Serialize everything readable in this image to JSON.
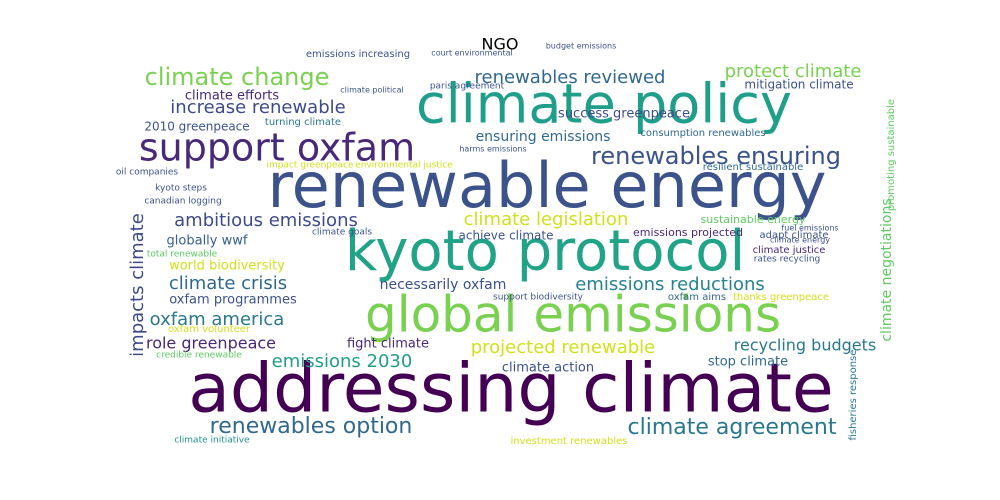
{
  "chart_data": {
    "type": "wordcloud",
    "title": "NGO",
    "words": [
      "addressing climate",
      "renewable energy",
      "climate policy",
      "kyoto protocol",
      "global emissions",
      "support oxfam",
      "climate change",
      "renewables reviewed",
      "protect climate",
      "renewables ensuring",
      "increase renewable",
      "climate efforts",
      "2010 greenpeace",
      "success greenpeace",
      "ensuring emissions",
      "climate legislation",
      "ambitious emissions",
      "globally wwf",
      "world biodiversity",
      "climate crisis",
      "oxfam programmes",
      "oxfam america",
      "role greenpeace",
      "emissions 2030",
      "renewables option",
      "climate agreement",
      "projected renewable",
      "fight climate",
      "climate action",
      "stop climate",
      "recycling budgets",
      "emissions reductions",
      "necessarily oxfam",
      "achieve climate",
      "sustainable energy",
      "emissions projected",
      "impacts climate",
      "climate negotiations",
      "promoting sustainable",
      "mitigation climate",
      "consumption renewables",
      "emissions increasing",
      "climate political",
      "paris agreement",
      "kyoto steps",
      "canadian logging",
      "oil companies",
      "impact greenpeace",
      "environmental justice",
      "resilient sustainable",
      "adapt climate",
      "climate justice",
      "rates recycling",
      "oxfam aims",
      "thanks greenpeace",
      "total renewable",
      "climate goals",
      "turning climate",
      "harms emissions",
      "support biodiversity",
      "credible renewable",
      "oxfam volunteer",
      "climate initiative",
      "investment renewables",
      "fuel emissions",
      "climate energy",
      "fisheries response",
      "budget emissions",
      "court environmental"
    ],
    "values": [
      68,
      62,
      54,
      56,
      50,
      38,
      24,
      18,
      18,
      24,
      18,
      13,
      12,
      13,
      14,
      18,
      18,
      13,
      13,
      18,
      13,
      18,
      16,
      18,
      22,
      22,
      18,
      13,
      13,
      13,
      16,
      18,
      14,
      12,
      11,
      11,
      18,
      14,
      10,
      12,
      10,
      10,
      8,
      9,
      9,
      9,
      9,
      9,
      9,
      10,
      10,
      10,
      9,
      10,
      10,
      9,
      9,
      10,
      8,
      9,
      9,
      10,
      9,
      10,
      8,
      8,
      10,
      8,
      8
    ],
    "colors": [
      "#440154",
      "#3b528b",
      "#1f9e89",
      "#20a386",
      "#7ad151",
      "#482878",
      "#7ad151",
      "#31688e",
      "#7ad151",
      "#3b528b",
      "#3e4a89",
      "#482878",
      "#3b528b",
      "#3e4a89",
      "#31688e",
      "#d0e11c",
      "#3e4a89",
      "#35608d",
      "#d0e11c",
      "#31688e",
      "#3b528b",
      "#2a788e",
      "#482878",
      "#1f9e89",
      "#31688e",
      "#2a788e",
      "#d0e11c",
      "#482878",
      "#3b528b",
      "#31688e",
      "#2a788e",
      "#26828e",
      "#3b528b",
      "#3b528b",
      "#5ec962",
      "#482878",
      "#3e4a89",
      "#5ec962",
      "#5ec962",
      "#3b528b",
      "#31688e",
      "#3b528b",
      "#3b528b",
      "#3b528b",
      "#3b528b",
      "#3b528b",
      "#3b528b",
      "#d0e11c",
      "#d0e11c",
      "#31688e",
      "#3b528b",
      "#482878",
      "#3b528b",
      "#31688e",
      "#d0e11c",
      "#5ec962",
      "#3b528b",
      "#2a788e",
      "#3b528b",
      "#3b528b",
      "#5ec962",
      "#d0e11c",
      "#21918c",
      "#d0e11c",
      "#3b528b",
      "#3b528b",
      "#2a788e",
      "#3b528b",
      "#3b528b"
    ]
  }
}
